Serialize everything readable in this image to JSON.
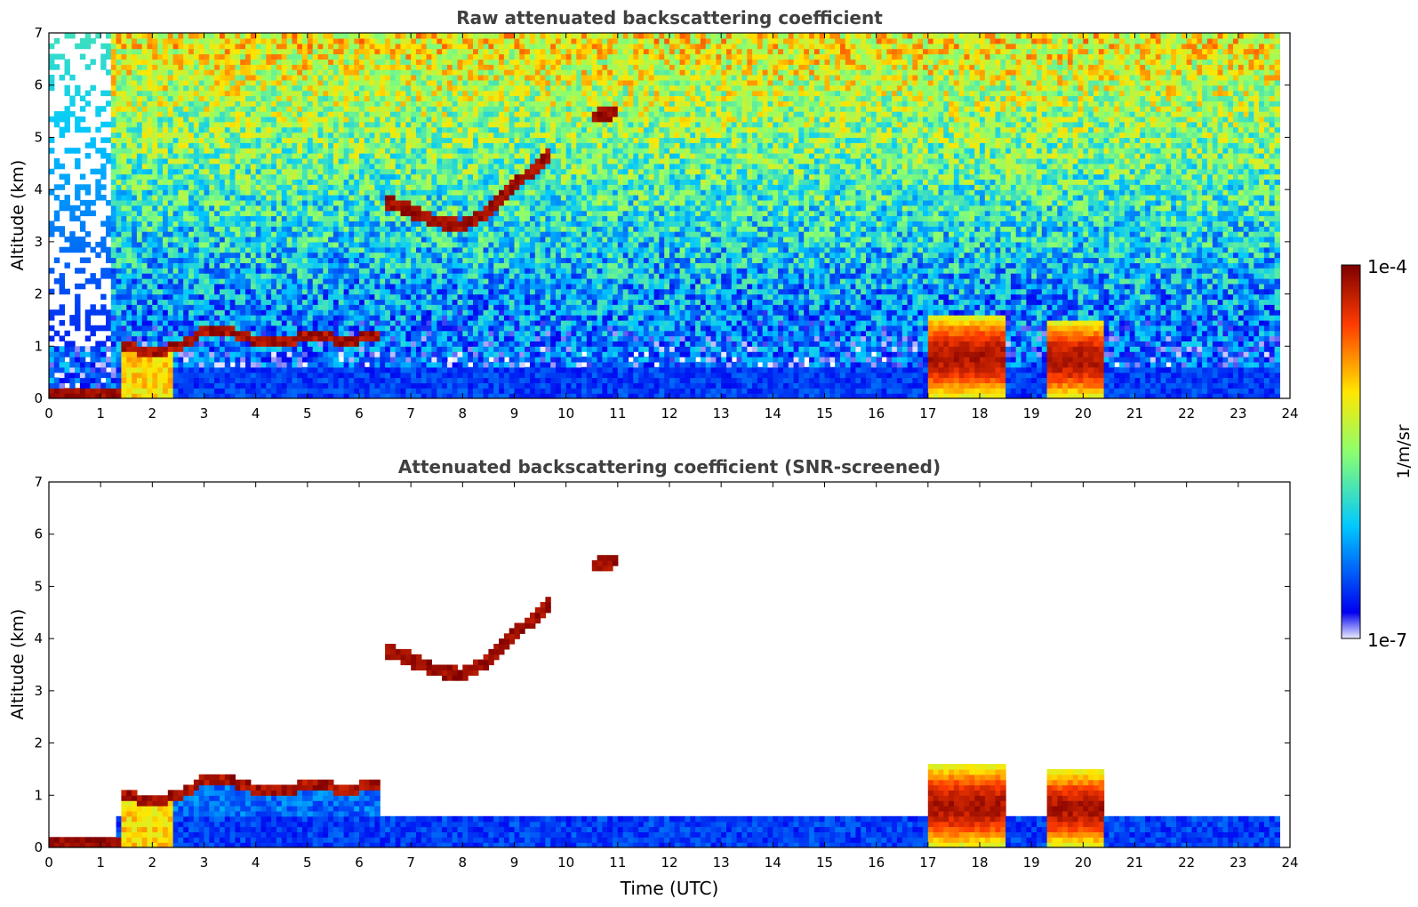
{
  "chart_data": [
    {
      "type": "heatmap",
      "title": "Raw attenuated backscattering coefficient",
      "xlabel": "",
      "ylabel": "Altitude (km)",
      "xlim": [
        0,
        24
      ],
      "ylim": [
        0,
        7
      ],
      "xticks": [
        "0",
        "1",
        "2",
        "3",
        "4",
        "5",
        "6",
        "7",
        "8",
        "9",
        "10",
        "11",
        "12",
        "13",
        "14",
        "15",
        "16",
        "17",
        "18",
        "19",
        "20",
        "21",
        "22",
        "23",
        "24"
      ],
      "yticks": [
        "0",
        "1",
        "2",
        "3",
        "4",
        "5",
        "6",
        "7"
      ],
      "data_end_time": 23.8,
      "features": [
        {
          "kind": "surface_layer",
          "x_start": 0,
          "x_end": 1.35,
          "y_top": 0.2,
          "level": "dark-red"
        },
        {
          "kind": "boundary_layer_top",
          "points": [
            [
              1.4,
              1.0
            ],
            [
              2.0,
              0.9
            ],
            [
              2.5,
              1.0
            ],
            [
              3.0,
              1.3
            ],
            [
              3.5,
              1.3
            ],
            [
              4.0,
              1.1
            ],
            [
              4.5,
              1.1
            ],
            [
              5.0,
              1.2
            ],
            [
              5.5,
              1.15
            ],
            [
              6.0,
              1.15
            ],
            [
              6.4,
              1.2
            ]
          ]
        },
        {
          "kind": "elevated_layer",
          "points": [
            [
              6.5,
              3.8
            ],
            [
              7.0,
              3.6
            ],
            [
              7.5,
              3.4
            ],
            [
              8.0,
              3.3
            ],
            [
              8.5,
              3.6
            ],
            [
              9.0,
              4.1
            ],
            [
              9.5,
              4.5
            ],
            [
              9.7,
              4.7
            ]
          ]
        },
        {
          "kind": "elevated_layer",
          "points": [
            [
              10.5,
              5.4
            ],
            [
              11.0,
              5.5
            ]
          ]
        },
        {
          "kind": "cloud_column",
          "x_start": 17.0,
          "x_end": 18.5,
          "y_top": 1.6
        },
        {
          "kind": "cloud_column",
          "x_start": 19.3,
          "x_end": 20.4,
          "y_top": 1.5
        }
      ]
    },
    {
      "type": "heatmap",
      "title": "Attenuated backscattering coefficient (SNR-screened)",
      "xlabel": "Time (UTC)",
      "ylabel": "Altitude (km)",
      "xlim": [
        0,
        24
      ],
      "ylim": [
        0,
        7
      ],
      "xticks": [
        "0",
        "1",
        "2",
        "3",
        "4",
        "5",
        "6",
        "7",
        "8",
        "9",
        "10",
        "11",
        "12",
        "13",
        "14",
        "15",
        "16",
        "17",
        "18",
        "19",
        "20",
        "21",
        "22",
        "23",
        "24"
      ],
      "yticks": [
        "0",
        "1",
        "2",
        "3",
        "4",
        "5",
        "6",
        "7"
      ],
      "data_end_time": 23.8,
      "screened": true
    }
  ],
  "colorbar": {
    "label": "1/m/sr",
    "max_label": "1e-4",
    "min_label": "1e-7",
    "colors": [
      "#ececff",
      "#0000f0",
      "#00c8ff",
      "#8cff6e",
      "#ffe600",
      "#ff3c00",
      "#7e0000"
    ]
  }
}
